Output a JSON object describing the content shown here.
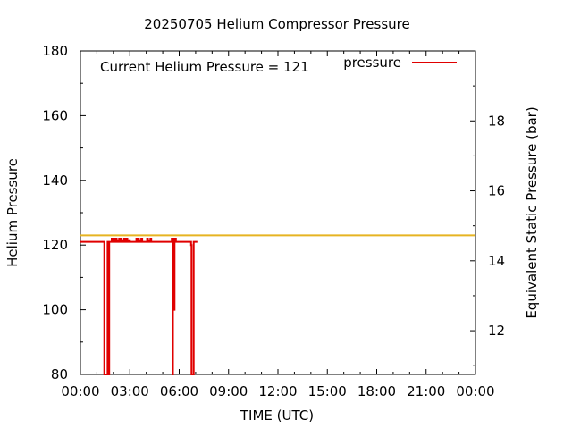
{
  "chart_data": {
    "type": "line",
    "title": "20250705 Helium Compressor Pressure",
    "xlabel": "TIME (UTC)",
    "ylabel": "Helium Pressure",
    "y2label": "Equivalent Static Pressure (bar)",
    "annotation": "Current Helium Pressure = 121",
    "xlim": [
      0,
      24
    ],
    "ylim": [
      80,
      180
    ],
    "y2lim": [
      10.75,
      20.0
    ],
    "x_ticks": [
      0,
      3,
      6,
      9,
      12,
      15,
      18,
      21,
      24
    ],
    "x_tick_labels": [
      "00:00",
      "03:00",
      "06:00",
      "09:00",
      "12:00",
      "15:00",
      "18:00",
      "21:00",
      "00:00"
    ],
    "y_ticks": [
      80,
      100,
      120,
      140,
      160,
      180
    ],
    "y_tick_labels": [
      "80",
      "100",
      "120",
      "140",
      "160",
      "180"
    ],
    "y2_ticks": [
      12,
      14,
      16,
      18
    ],
    "y2_tick_labels": [
      "12",
      "14",
      "16",
      "18"
    ],
    "grid": false,
    "legend": {
      "position": "top-right",
      "entries": [
        "pressure"
      ]
    },
    "reference_line": {
      "y": 123,
      "color": "#e6b422"
    },
    "series": [
      {
        "name": "pressure",
        "color": "#e00000",
        "x": [
          0.0,
          1.4,
          1.45,
          1.5,
          1.6,
          1.65,
          1.7,
          1.75,
          1.85,
          1.9,
          2.0,
          2.05,
          2.1,
          2.15,
          2.2,
          2.25,
          2.3,
          2.35,
          2.4,
          2.45,
          2.5,
          2.55,
          2.6,
          2.65,
          2.7,
          2.75,
          2.8,
          2.85,
          2.9,
          3.0,
          3.05,
          3.4,
          3.45,
          3.5,
          3.55,
          3.6,
          3.65,
          3.7,
          3.75,
          3.8,
          4.0,
          4.05,
          4.1,
          4.15,
          4.2,
          4.25,
          4.3,
          5.5,
          5.55,
          5.58,
          5.6,
          5.62,
          5.65,
          5.7,
          5.72,
          5.75,
          5.8,
          6.7,
          6.72,
          6.75,
          6.8,
          6.85,
          6.88,
          6.9,
          7.1
        ],
        "y": [
          121,
          121,
          80,
          80,
          80,
          121,
          80,
          121,
          121,
          122,
          121,
          122,
          121,
          122,
          121,
          121.5,
          121,
          122,
          121,
          122,
          121,
          121.5,
          121,
          122,
          121,
          121,
          122,
          121,
          121.5,
          121,
          121,
          122,
          121,
          122,
          121,
          121.5,
          121,
          122,
          121,
          121,
          121,
          122,
          121,
          121.5,
          121,
          122,
          121,
          121,
          122,
          121,
          80,
          122,
          121,
          100,
          121,
          122,
          121,
          121,
          120,
          80,
          80,
          80,
          121,
          121,
          121
        ]
      }
    ]
  }
}
